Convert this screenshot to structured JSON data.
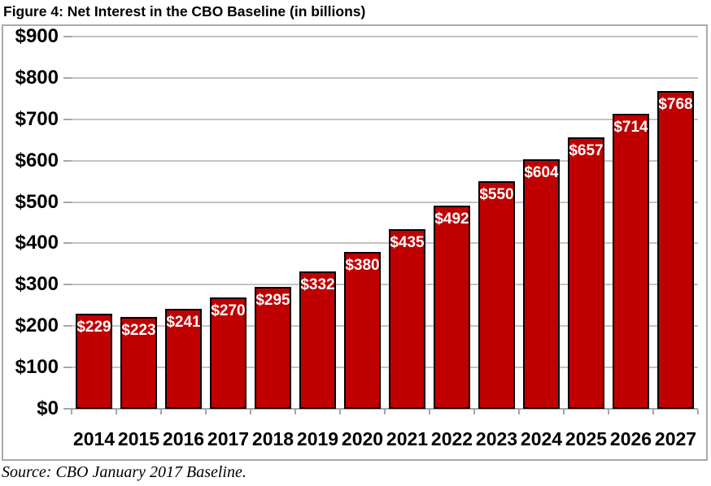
{
  "figure_title": "Figure 4: Net Interest in the CBO Baseline (in billions)",
  "source_note": "Source: CBO January 2017 Baseline.",
  "chart_data": {
    "type": "bar",
    "title": "Figure 4: Net Interest in the CBO Baseline (in billions)",
    "categories": [
      "2014",
      "2015",
      "2016",
      "2017",
      "2018",
      "2019",
      "2020",
      "2021",
      "2022",
      "2023",
      "2024",
      "2025",
      "2026",
      "2027"
    ],
    "values": [
      229,
      223,
      241,
      270,
      295,
      332,
      380,
      435,
      492,
      550,
      604,
      657,
      714,
      768
    ],
    "bar_labels": [
      "$229",
      "$223",
      "$241",
      "$270",
      "$295",
      "$332",
      "$380",
      "$435",
      "$492",
      "$550",
      "$604",
      "$657",
      "$714",
      "$768"
    ],
    "y_tick_labels": [
      "$0",
      "$100",
      "$200",
      "$300",
      "$400",
      "$500",
      "$600",
      "$700",
      "$800",
      "$900"
    ],
    "y_tick_values": [
      0,
      100,
      200,
      300,
      400,
      500,
      600,
      700,
      800,
      900
    ],
    "ylim": [
      0,
      900
    ],
    "xlabel": "",
    "ylabel": "",
    "grid": true,
    "legend": "none",
    "source": "Source: CBO January 2017 Baseline.",
    "colors": {
      "bar_fill": "#C00000",
      "bar_border": "#000000",
      "bar_label_text": "#FFFFFF",
      "gridline": "#C3C3C3",
      "axis_line": "#A6A6A6",
      "chart_border": "#ABABAB",
      "text": "#000000"
    }
  }
}
